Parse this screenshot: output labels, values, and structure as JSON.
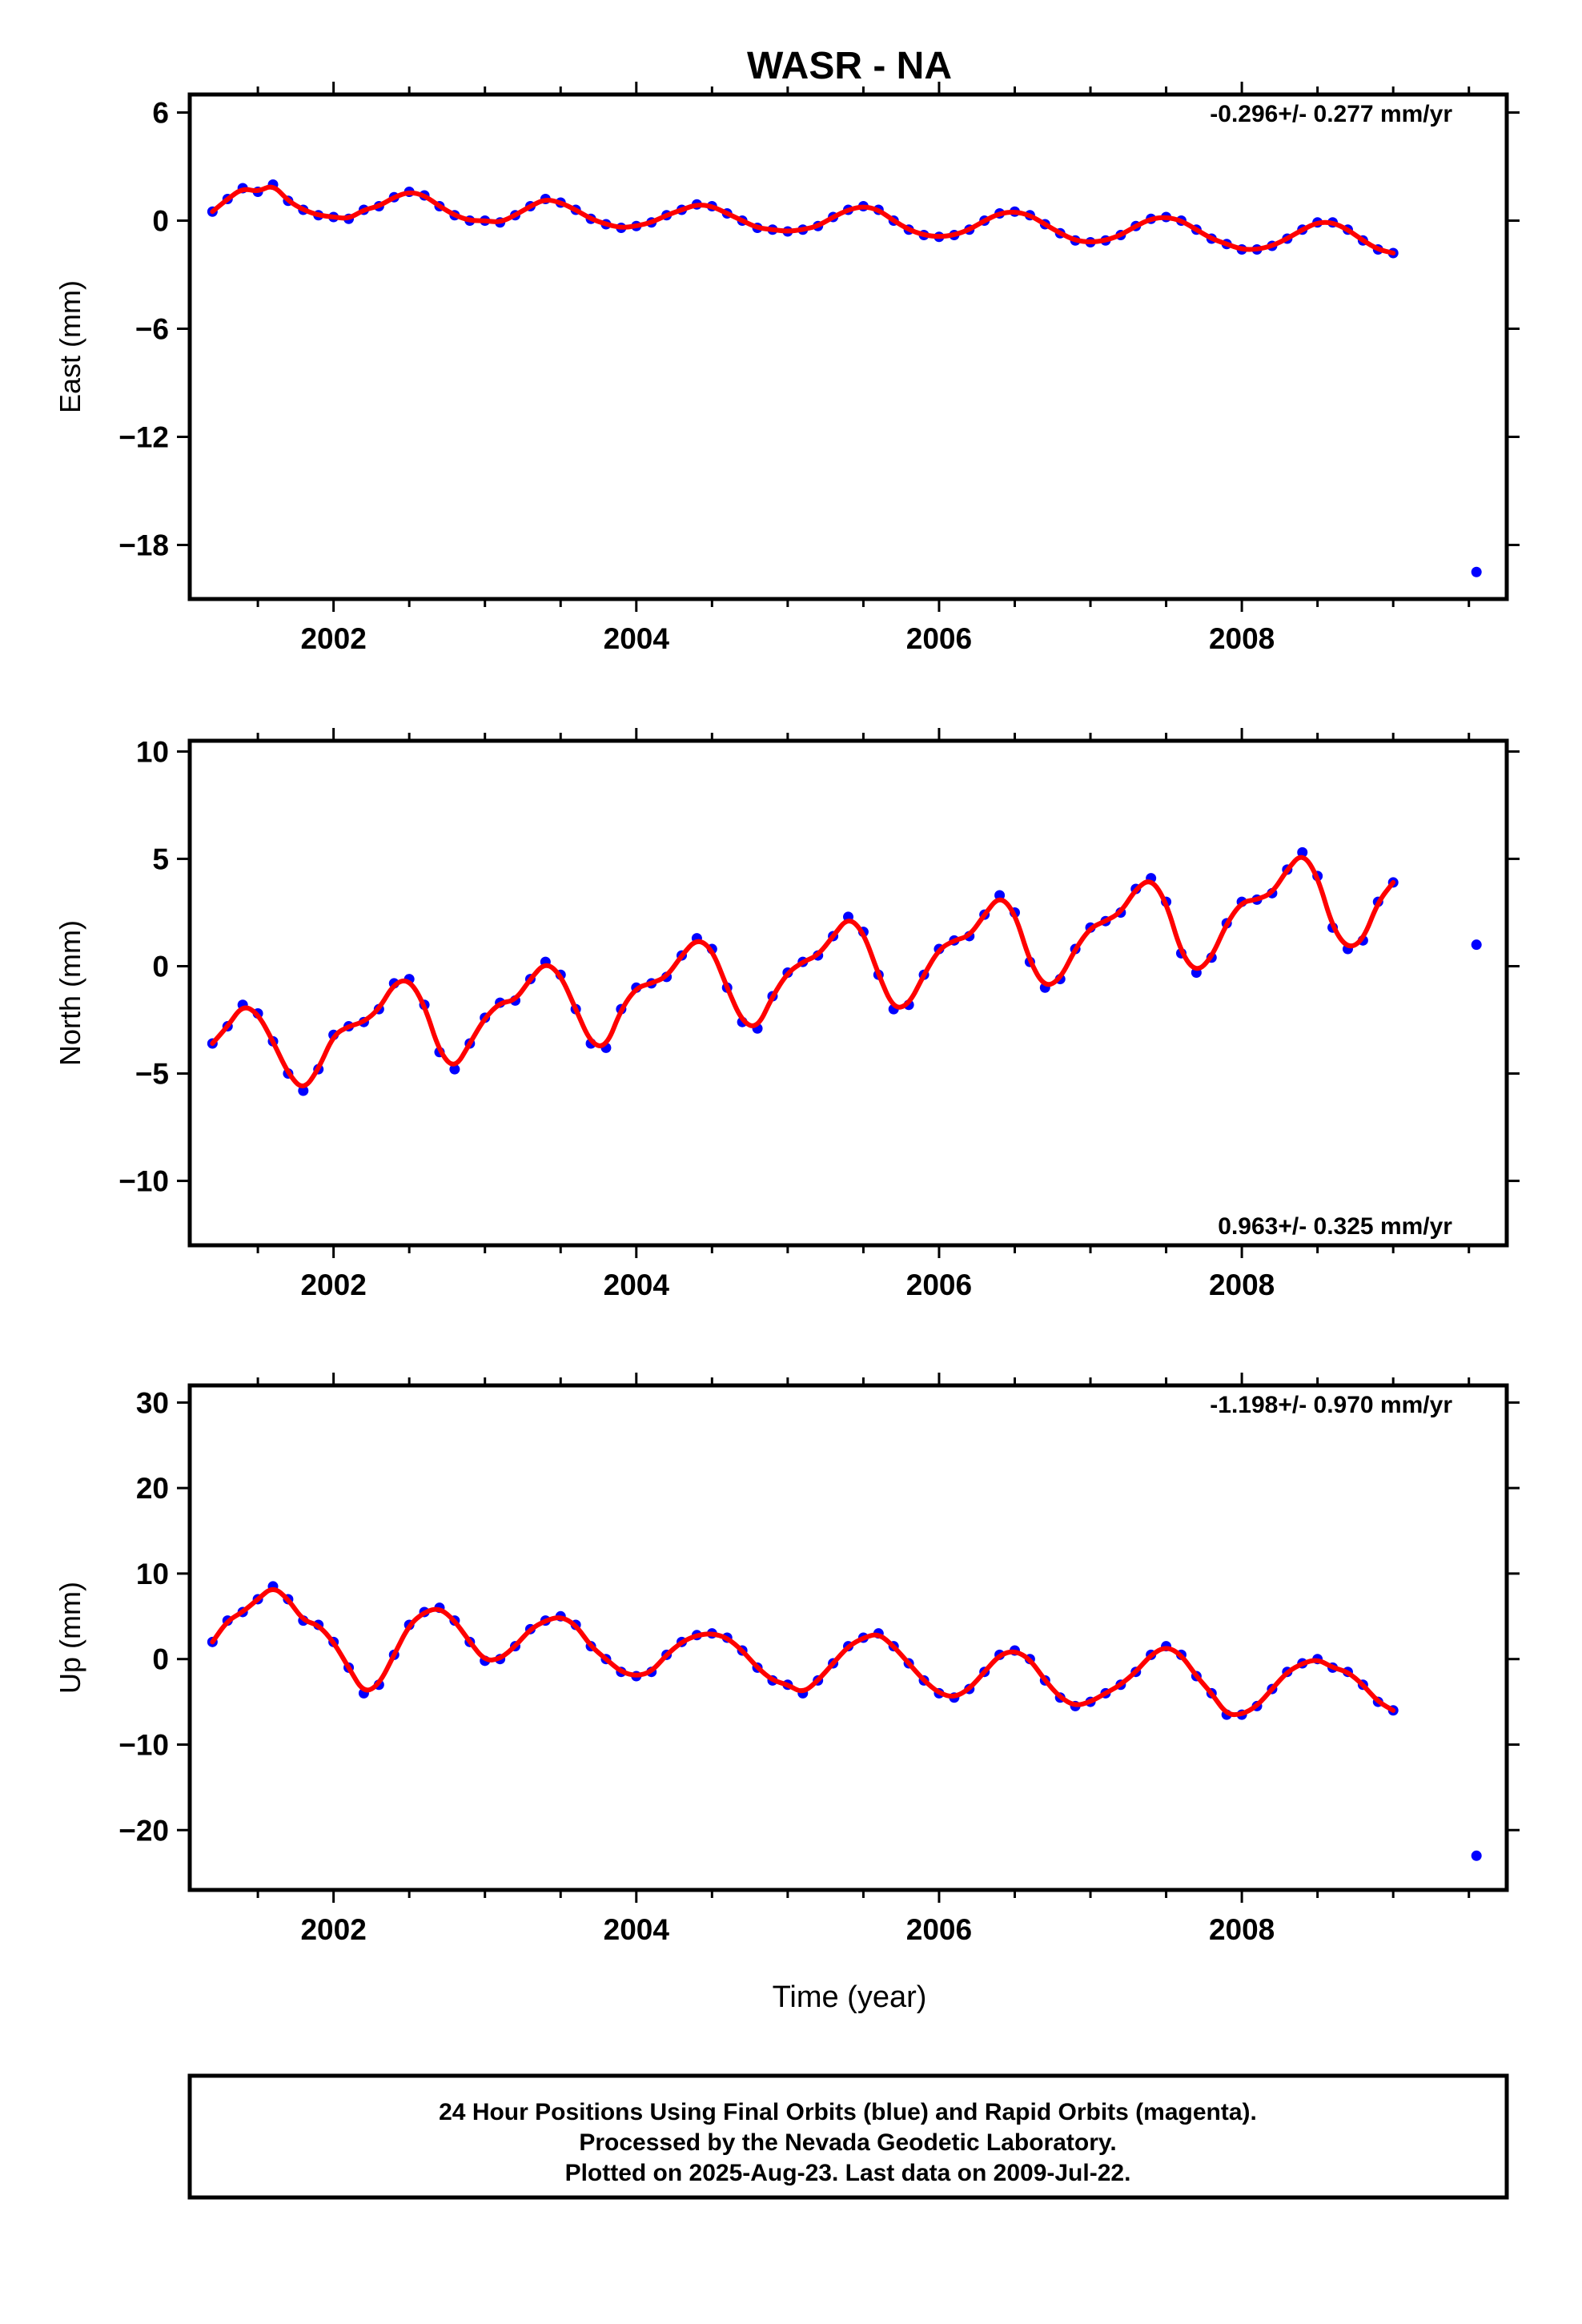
{
  "title": "WASR - NA",
  "footer": {
    "line1": "24 Hour Positions Using Final Orbits (blue) and Rapid Orbits (magenta).",
    "line2": "Processed by the Nevada Geodetic Laboratory.",
    "line3": "Plotted on 2025-Aug-23. Last data on 2009-Jul-22."
  },
  "colors": {
    "points": "#0000ff",
    "fit": "#ff0000",
    "axes": "#000000"
  },
  "chart_data": [
    {
      "type": "scatter",
      "ylabel": "East (mm)",
      "xlabel": "",
      "xlim": [
        2001.05,
        2009.75
      ],
      "ylim": [
        -21,
        7
      ],
      "yticks": [
        6,
        0,
        -6,
        -12,
        -18
      ],
      "ytick_labels": [
        "6",
        "0",
        "−6",
        "−12",
        "−18"
      ],
      "xticks": [
        2002,
        2004,
        2006,
        2008
      ],
      "rate": "-0.296+/- 0.277 mm/yr",
      "rate_position": "top-right",
      "series": [
        {
          "x": [
            2001.2,
            2001.3,
            2001.4,
            2001.5,
            2001.6,
            2001.7,
            2001.8,
            2001.9,
            2002.0,
            2002.1,
            2002.2,
            2002.3,
            2002.4,
            2002.5,
            2002.6,
            2002.7,
            2002.8,
            2002.9,
            2003.0,
            2003.1,
            2003.2,
            2003.3,
            2003.4,
            2003.5,
            2003.6,
            2003.7,
            2003.8,
            2003.9,
            2004.0,
            2004.1,
            2004.2,
            2004.3,
            2004.4,
            2004.5,
            2004.6,
            2004.7,
            2004.8,
            2004.9,
            2005.0,
            2005.1,
            2005.2,
            2005.3,
            2005.4,
            2005.5,
            2005.6,
            2005.7,
            2005.8,
            2005.9,
            2006.0,
            2006.1,
            2006.2,
            2006.3,
            2006.4,
            2006.5,
            2006.6,
            2006.7,
            2006.8,
            2006.9,
            2007.0,
            2007.1,
            2007.2,
            2007.3,
            2007.4,
            2007.5,
            2007.6,
            2007.7,
            2007.8,
            2007.9,
            2008.0,
            2008.1,
            2008.2,
            2008.3,
            2008.4,
            2008.5,
            2008.6,
            2008.7,
            2008.8,
            2008.9,
            2009.0,
            2009.55
          ],
          "y": [
            0.5,
            1.2,
            1.8,
            1.6,
            2.0,
            1.1,
            0.6,
            0.3,
            0.2,
            0.1,
            0.6,
            0.8,
            1.3,
            1.6,
            1.4,
            0.8,
            0.3,
            0.0,
            0.0,
            -0.1,
            0.3,
            0.8,
            1.2,
            1.0,
            0.6,
            0.1,
            -0.2,
            -0.4,
            -0.3,
            -0.1,
            0.3,
            0.6,
            0.9,
            0.8,
            0.4,
            0.0,
            -0.4,
            -0.5,
            -0.6,
            -0.5,
            -0.3,
            0.2,
            0.6,
            0.8,
            0.6,
            0.0,
            -0.5,
            -0.8,
            -0.9,
            -0.8,
            -0.5,
            0.0,
            0.4,
            0.5,
            0.3,
            -0.2,
            -0.7,
            -1.1,
            -1.2,
            -1.1,
            -0.8,
            -0.3,
            0.1,
            0.2,
            0.0,
            -0.5,
            -1.0,
            -1.3,
            -1.6,
            -1.6,
            -1.4,
            -1.0,
            -0.5,
            -0.1,
            -0.1,
            -0.5,
            -1.1,
            -1.6,
            -1.8,
            -19.5
          ]
        }
      ]
    },
    {
      "type": "scatter",
      "ylabel": "North (mm)",
      "xlabel": "",
      "xlim": [
        2001.05,
        2009.75
      ],
      "ylim": [
        -13,
        10.5
      ],
      "yticks": [
        10,
        5,
        0,
        -5,
        -10
      ],
      "ytick_labels": [
        "10",
        "5",
        "0",
        "−5",
        "−10"
      ],
      "xticks": [
        2002,
        2004,
        2006,
        2008
      ],
      "rate": "0.963+/- 0.325 mm/yr",
      "rate_position": "bottom-right",
      "series": [
        {
          "x": [
            2001.2,
            2001.3,
            2001.4,
            2001.5,
            2001.6,
            2001.7,
            2001.8,
            2001.9,
            2002.0,
            2002.1,
            2002.2,
            2002.3,
            2002.4,
            2002.5,
            2002.6,
            2002.7,
            2002.8,
            2002.9,
            2003.0,
            2003.1,
            2003.2,
            2003.3,
            2003.4,
            2003.5,
            2003.6,
            2003.7,
            2003.8,
            2003.9,
            2004.0,
            2004.1,
            2004.2,
            2004.3,
            2004.4,
            2004.5,
            2004.6,
            2004.7,
            2004.8,
            2004.9,
            2005.0,
            2005.1,
            2005.2,
            2005.3,
            2005.4,
            2005.5,
            2005.6,
            2005.7,
            2005.8,
            2005.9,
            2006.0,
            2006.1,
            2006.2,
            2006.3,
            2006.4,
            2006.5,
            2006.6,
            2006.7,
            2006.8,
            2006.9,
            2007.0,
            2007.1,
            2007.2,
            2007.3,
            2007.4,
            2007.5,
            2007.6,
            2007.7,
            2007.8,
            2007.9,
            2008.0,
            2008.1,
            2008.2,
            2008.3,
            2008.4,
            2008.5,
            2008.6,
            2008.7,
            2008.8,
            2008.9,
            2009.0,
            2009.55
          ],
          "y": [
            -3.6,
            -2.8,
            -1.8,
            -2.2,
            -3.5,
            -5.0,
            -5.8,
            -4.8,
            -3.2,
            -2.8,
            -2.6,
            -2.0,
            -0.8,
            -0.6,
            -1.8,
            -4.0,
            -4.8,
            -3.6,
            -2.4,
            -1.7,
            -1.6,
            -0.6,
            0.2,
            -0.4,
            -2.0,
            -3.6,
            -3.8,
            -2.0,
            -1.0,
            -0.8,
            -0.5,
            0.5,
            1.3,
            0.8,
            -1.0,
            -2.6,
            -2.9,
            -1.4,
            -0.3,
            0.2,
            0.5,
            1.4,
            2.3,
            1.6,
            -0.4,
            -2.0,
            -1.8,
            -0.4,
            0.8,
            1.2,
            1.4,
            2.4,
            3.3,
            2.5,
            0.2,
            -1.0,
            -0.6,
            0.8,
            1.8,
            2.1,
            2.5,
            3.6,
            4.1,
            3.0,
            0.6,
            -0.3,
            0.4,
            2.0,
            3.0,
            3.1,
            3.4,
            4.5,
            5.3,
            4.2,
            1.8,
            0.8,
            1.2,
            3.0,
            3.9,
            1.0
          ]
        }
      ]
    },
    {
      "type": "scatter",
      "ylabel": "Up (mm)",
      "xlabel": "Time (year)",
      "xlim": [
        2001.05,
        2009.75
      ],
      "ylim": [
        -27,
        32
      ],
      "yticks": [
        30,
        20,
        10,
        0,
        -10,
        -20
      ],
      "ytick_labels": [
        "30",
        "20",
        "10",
        "0",
        "−10",
        "−20"
      ],
      "xticks": [
        2002,
        2004,
        2006,
        2008
      ],
      "rate": "-1.198+/- 0.970 mm/yr",
      "rate_position": "top-right",
      "series": [
        {
          "x": [
            2001.2,
            2001.3,
            2001.4,
            2001.5,
            2001.6,
            2001.7,
            2001.8,
            2001.9,
            2002.0,
            2002.1,
            2002.2,
            2002.3,
            2002.4,
            2002.5,
            2002.6,
            2002.7,
            2002.8,
            2002.9,
            2003.0,
            2003.1,
            2003.2,
            2003.3,
            2003.4,
            2003.5,
            2003.6,
            2003.7,
            2003.8,
            2003.9,
            2004.0,
            2004.1,
            2004.2,
            2004.3,
            2004.4,
            2004.5,
            2004.6,
            2004.7,
            2004.8,
            2004.9,
            2005.0,
            2005.1,
            2005.2,
            2005.3,
            2005.4,
            2005.5,
            2005.6,
            2005.7,
            2005.8,
            2005.9,
            2006.0,
            2006.1,
            2006.2,
            2006.3,
            2006.4,
            2006.5,
            2006.6,
            2006.7,
            2006.8,
            2006.9,
            2007.0,
            2007.1,
            2007.2,
            2007.3,
            2007.4,
            2007.5,
            2007.6,
            2007.7,
            2007.8,
            2007.9,
            2008.0,
            2008.1,
            2008.2,
            2008.3,
            2008.4,
            2008.5,
            2008.6,
            2008.7,
            2008.8,
            2008.9,
            2009.0,
            2009.55
          ],
          "y": [
            2.0,
            4.5,
            5.5,
            7.0,
            8.5,
            7.0,
            4.5,
            4.0,
            2.0,
            -1.0,
            -4.0,
            -3.0,
            0.5,
            4.0,
            5.5,
            6.0,
            4.5,
            2.0,
            -0.2,
            0.0,
            1.5,
            3.5,
            4.5,
            5.0,
            4.0,
            1.5,
            0.0,
            -1.5,
            -2.0,
            -1.5,
            0.5,
            2.0,
            2.8,
            3.0,
            2.5,
            1.0,
            -1.0,
            -2.5,
            -3.0,
            -4.0,
            -2.5,
            -0.5,
            1.5,
            2.5,
            3.0,
            1.5,
            -0.5,
            -2.5,
            -4.0,
            -4.5,
            -3.5,
            -1.5,
            0.5,
            1.0,
            0.0,
            -2.5,
            -4.5,
            -5.5,
            -5.0,
            -4.0,
            -3.0,
            -1.5,
            0.5,
            1.5,
            0.5,
            -2.0,
            -4.0,
            -6.5,
            -6.5,
            -5.5,
            -3.5,
            -1.5,
            -0.5,
            0.0,
            -1.0,
            -1.5,
            -3.0,
            -5.0,
            -6.0,
            -23.0
          ]
        }
      ]
    }
  ]
}
